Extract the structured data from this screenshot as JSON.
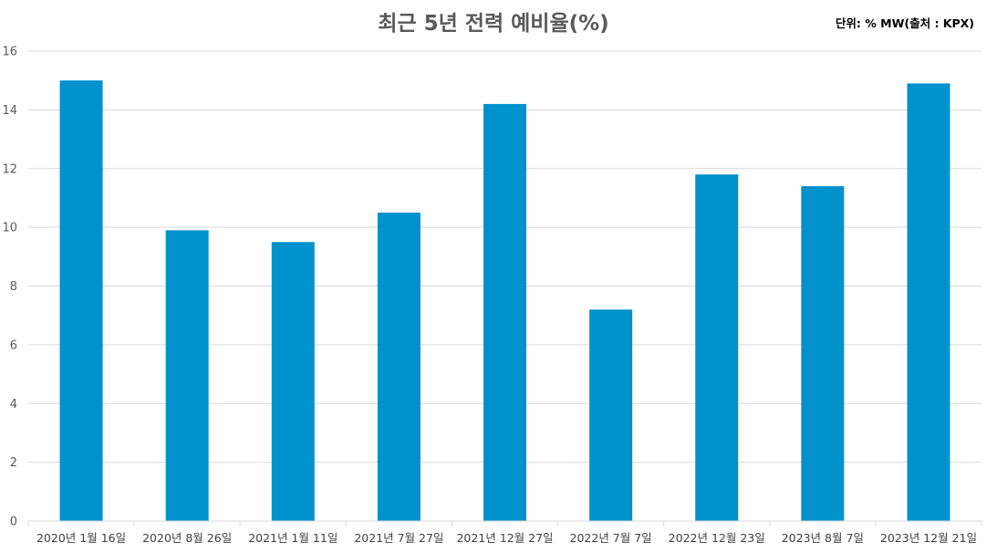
{
  "chart_data": {
    "type": "bar",
    "title": "최근 5년 전력 예비율(%)",
    "unit_note": "단위: % MW(출처 : KPX)",
    "categories": [
      "2020년 1월 16일",
      "2020년 8월 26일",
      "2021년 1월 11일",
      "2021년 7월 27일",
      "2021년 12월 27일",
      "2022년 7월 7일",
      "2022년 12월 23일",
      "2023년 8월 7일",
      "2023년 12월 21일"
    ],
    "values": [
      15.0,
      9.9,
      9.5,
      10.5,
      14.2,
      7.2,
      11.8,
      11.4,
      14.9
    ],
    "ylim": [
      0,
      16
    ],
    "yticks": [
      "0",
      "2",
      "4",
      "6",
      "8",
      "10",
      "12",
      "14",
      "16"
    ],
    "xlabel": "",
    "ylabel": "",
    "grid": true,
    "legend": "none",
    "bar_color": "#0092CD",
    "grid_color": "#D9D9D9"
  }
}
